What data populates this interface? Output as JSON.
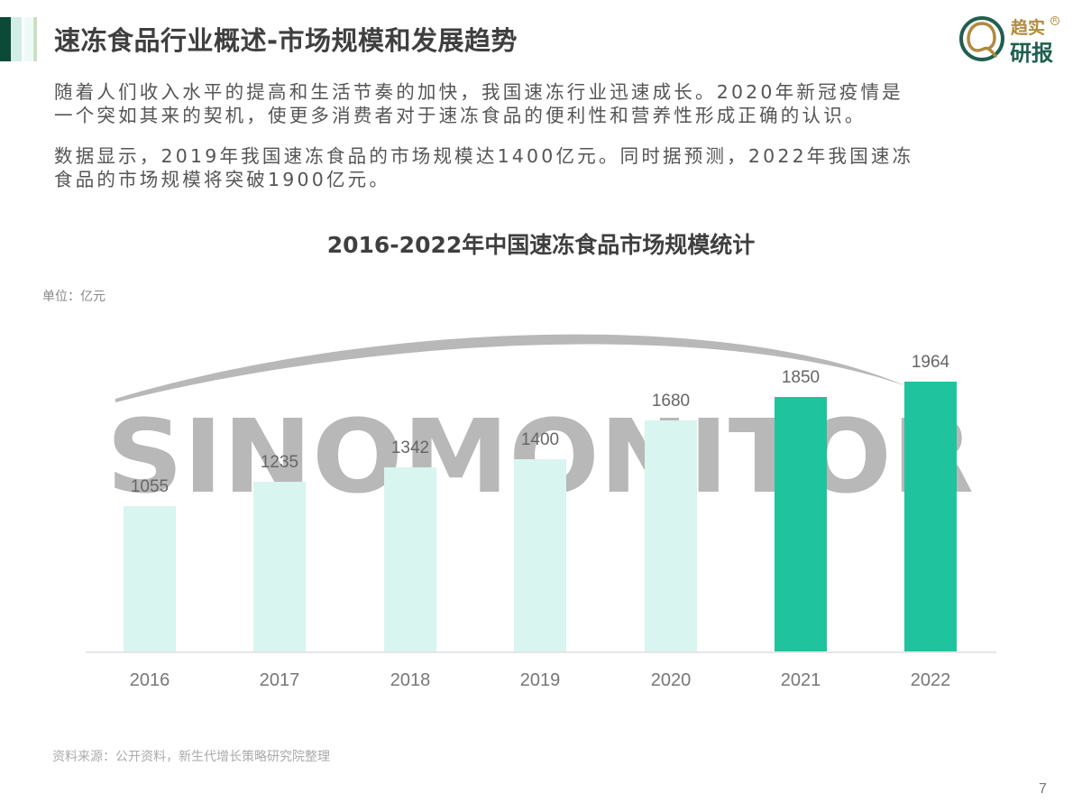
{
  "header": {
    "title": "速冻食品行业概述-市场规模和发展趋势",
    "accent_colors": [
      "#0b4a36",
      "#d3ede8",
      "#eefaf7",
      "#c7e2bd"
    ]
  },
  "logo": {
    "line1": "趋实",
    "line2": "研报",
    "registered": "R",
    "colors": {
      "gold": "#b08a3e",
      "green": "#1f5f4f"
    }
  },
  "body": {
    "paragraphs": [
      {
        "lines": [
          "随着人们收入水平的提高和生活节奏的加快，我国速冻行业迅速成长。2020年新冠疫情是",
          "一个突如其来的契机，使更多消费者对于速冻食品的便利性和营养性形成正确的认识。"
        ]
      },
      {
        "lines": [
          "数据显示，2019年我国速冻食品的市场规模达1400亿元。同时据预测，2022年我国速冻",
          "食品的市场规模将突破1900亿元。"
        ]
      }
    ]
  },
  "chart": {
    "unit_label": "单位：亿元",
    "watermark": "SINOMONITOR",
    "colors": {
      "light": "#d8f5f0",
      "highlight": "#1fc49e",
      "baseline": "#e6e6e6",
      "watermark": "#b8b8b8"
    }
  },
  "chart_data": {
    "type": "bar",
    "title": "2016-2022年中国速冻食品市场规模统计",
    "xlabel": "",
    "ylabel": "单位：亿元",
    "categories": [
      "2016",
      "2017",
      "2018",
      "2019",
      "2020",
      "2021",
      "2022"
    ],
    "values": [
      1055,
      1235,
      1342,
      1400,
      1680,
      1850,
      1964
    ],
    "highlighted": [
      false,
      false,
      false,
      false,
      false,
      true,
      true
    ],
    "data_labels": [
      "1055",
      "1235",
      "1342",
      "1400",
      "1680",
      "1850",
      "1964"
    ],
    "ylim": [
      0,
      1964
    ],
    "grid": false,
    "legend": null
  },
  "footer": {
    "source": "资料来源：公开资料，新生代增长策略研究院整理",
    "page_number": "7"
  }
}
